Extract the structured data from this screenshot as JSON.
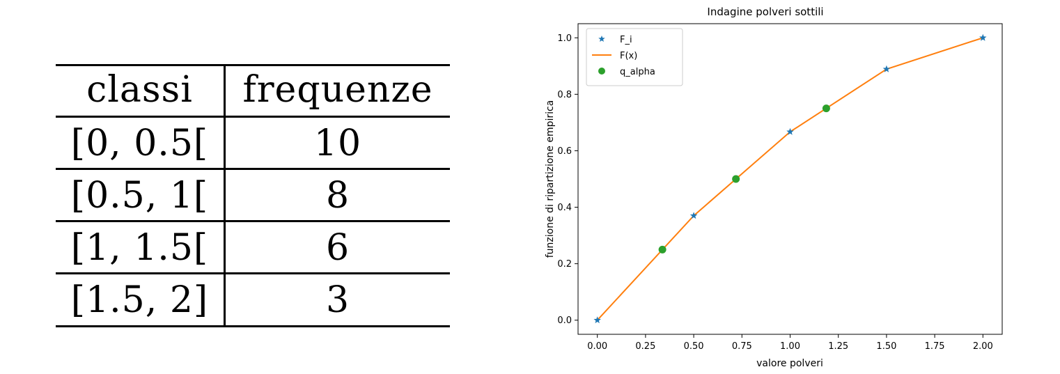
{
  "table": {
    "headers": [
      "classi",
      "frequenze"
    ],
    "rows": [
      [
        "[0, 0.5[",
        "10"
      ],
      [
        "[0.5, 1[",
        "8"
      ],
      [
        "[1, 1.5[",
        "6"
      ],
      [
        "[1.5, 2]",
        "3"
      ]
    ]
  },
  "chart_data": {
    "type": "line",
    "title": "Indagine polveri sottili",
    "xlabel": "valore polveri",
    "ylabel": "funzione di ripartizione empirica",
    "xlim": [
      -0.1,
      2.1
    ],
    "ylim": [
      -0.05,
      1.05
    ],
    "xticks": [
      0.0,
      0.25,
      0.5,
      0.75,
      1.0,
      1.25,
      1.5,
      1.75,
      2.0
    ],
    "xtick_labels": [
      "0.00",
      "0.25",
      "0.50",
      "0.75",
      "1.00",
      "1.25",
      "1.50",
      "1.75",
      "2.00"
    ],
    "yticks": [
      0.0,
      0.2,
      0.4,
      0.6,
      0.8,
      1.0
    ],
    "ytick_labels": [
      "0.0",
      "0.2",
      "0.4",
      "0.6",
      "0.8",
      "1.0"
    ],
    "grid": false,
    "legend_position": "top-left",
    "series": [
      {
        "name": "F_i",
        "kind": "star-markers",
        "color": "#1f77b4",
        "points": [
          [
            0.0,
            0.0
          ],
          [
            0.5,
            0.37
          ],
          [
            1.0,
            0.667
          ],
          [
            1.5,
            0.889
          ],
          [
            2.0,
            1.0
          ]
        ]
      },
      {
        "name": "F(x)",
        "kind": "line",
        "color": "#ff7f0e",
        "points": [
          [
            0.0,
            0.0
          ],
          [
            0.5,
            0.37
          ],
          [
            1.0,
            0.667
          ],
          [
            1.5,
            0.889
          ],
          [
            2.0,
            1.0
          ]
        ]
      },
      {
        "name": "q_alpha",
        "kind": "circle-markers",
        "color": "#2ca02c",
        "points": [
          [
            0.3375,
            0.25
          ],
          [
            0.7188,
            0.5
          ],
          [
            1.1875,
            0.75
          ]
        ]
      }
    ]
  }
}
